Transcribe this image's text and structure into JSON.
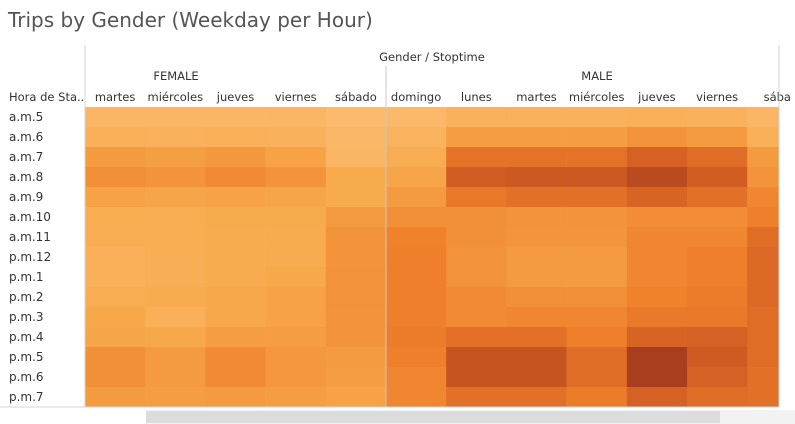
{
  "title": "Trips by Gender (Weekday per Hour)",
  "chart_data": {
    "type": "heatmap",
    "title": "Trips by Gender (Weekday per Hour)",
    "column_header": "Gender / Stoptime",
    "row_header": "Hora de Sta..",
    "groups": [
      {
        "name": "FEMALE",
        "days": [
          "martes",
          "miércoles",
          "jueves",
          "viernes",
          "sábado"
        ]
      },
      {
        "name": "MALE",
        "days": [
          "domingo",
          "lunes",
          "martes",
          "miércoles",
          "jueves",
          "viernes",
          "sába"
        ]
      }
    ],
    "rows": [
      "a.m.5",
      "a.m.6",
      "a.m.7",
      "a.m.8",
      "a.m.9",
      "a.m.10",
      "a.m.11",
      "p.m.12",
      "p.m.1",
      "p.m.2",
      "p.m.3",
      "p.m.4",
      "p.m.5",
      "p.m.6",
      "p.m.7"
    ],
    "intensity_scale": [
      0,
      1
    ],
    "values": [
      [
        0.15,
        0.14,
        0.15,
        0.14,
        0.1,
        0.12,
        0.2,
        0.2,
        0.2,
        0.22,
        0.2,
        0.15
      ],
      [
        0.22,
        0.2,
        0.22,
        0.2,
        0.13,
        0.18,
        0.38,
        0.38,
        0.38,
        0.45,
        0.4,
        0.22
      ],
      [
        0.4,
        0.37,
        0.42,
        0.35,
        0.15,
        0.25,
        0.68,
        0.68,
        0.68,
        0.8,
        0.72,
        0.4
      ],
      [
        0.48,
        0.45,
        0.52,
        0.45,
        0.28,
        0.32,
        0.83,
        0.86,
        0.86,
        0.92,
        0.83,
        0.45
      ],
      [
        0.35,
        0.32,
        0.35,
        0.32,
        0.28,
        0.4,
        0.65,
        0.7,
        0.7,
        0.78,
        0.7,
        0.55
      ],
      [
        0.25,
        0.25,
        0.28,
        0.28,
        0.4,
        0.48,
        0.48,
        0.45,
        0.45,
        0.5,
        0.5,
        0.6
      ],
      [
        0.25,
        0.25,
        0.27,
        0.27,
        0.45,
        0.58,
        0.48,
        0.44,
        0.44,
        0.55,
        0.55,
        0.72
      ],
      [
        0.22,
        0.24,
        0.27,
        0.27,
        0.45,
        0.6,
        0.46,
        0.4,
        0.4,
        0.55,
        0.6,
        0.75
      ],
      [
        0.22,
        0.24,
        0.27,
        0.3,
        0.46,
        0.6,
        0.46,
        0.4,
        0.4,
        0.55,
        0.6,
        0.75
      ],
      [
        0.25,
        0.27,
        0.3,
        0.35,
        0.46,
        0.6,
        0.52,
        0.48,
        0.48,
        0.58,
        0.62,
        0.75
      ],
      [
        0.3,
        0.22,
        0.3,
        0.35,
        0.45,
        0.6,
        0.52,
        0.55,
        0.55,
        0.64,
        0.65,
        0.72
      ],
      [
        0.32,
        0.3,
        0.38,
        0.38,
        0.45,
        0.62,
        0.7,
        0.7,
        0.6,
        0.78,
        0.8,
        0.72
      ],
      [
        0.48,
        0.4,
        0.52,
        0.42,
        0.4,
        0.6,
        0.88,
        0.88,
        0.72,
        0.98,
        0.85,
        0.72
      ],
      [
        0.48,
        0.4,
        0.52,
        0.42,
        0.38,
        0.55,
        0.88,
        0.88,
        0.72,
        0.98,
        0.8,
        0.7
      ],
      [
        0.4,
        0.38,
        0.4,
        0.38,
        0.35,
        0.55,
        0.7,
        0.7,
        0.62,
        0.8,
        0.72,
        0.7
      ]
    ],
    "color_low": "#fdc27d",
    "color_high": "#a33a1f"
  }
}
